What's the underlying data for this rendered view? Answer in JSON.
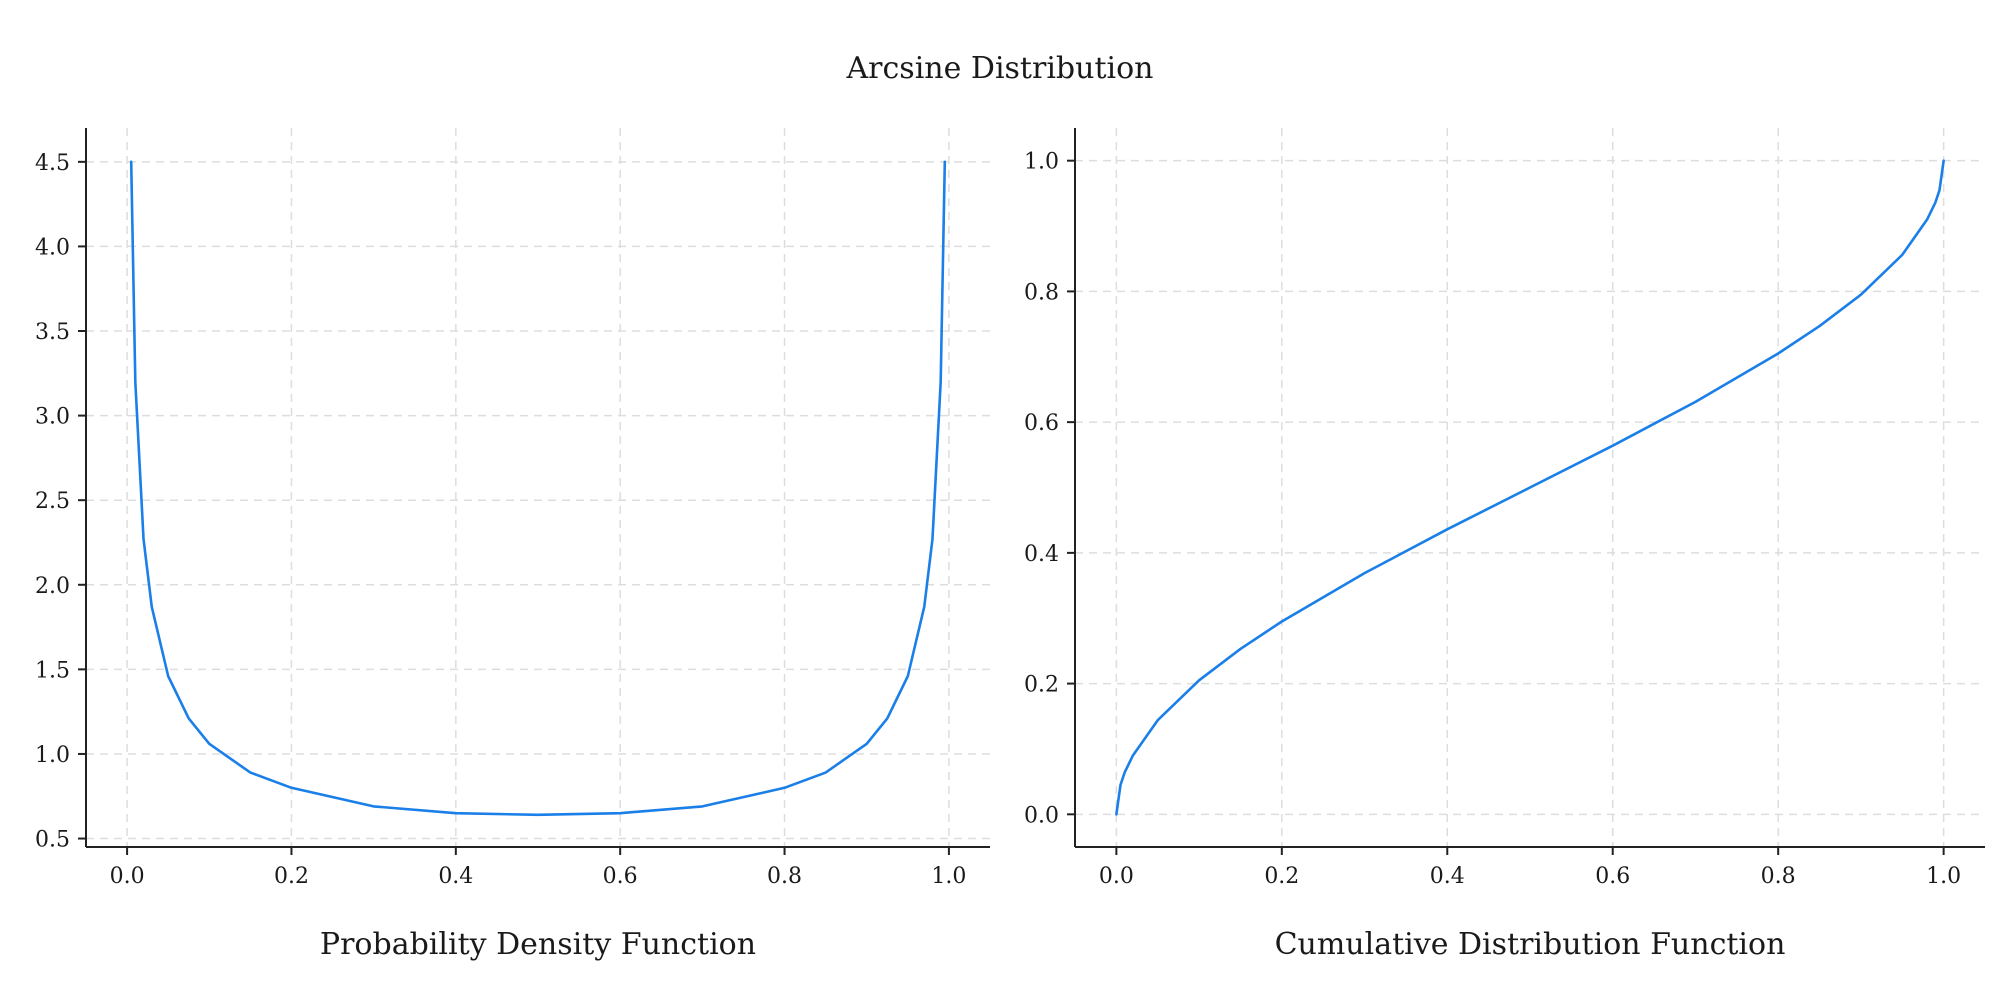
{
  "figure_title": "Arcsine Distribution",
  "line_color": "#1a7fe8",
  "chart_data": [
    {
      "type": "line",
      "xlabel": "Probability Density Function",
      "ylabel": "",
      "xlim": [
        -0.05,
        1.05
      ],
      "ylim": [
        0.45,
        4.7
      ],
      "xticks": [
        0.0,
        0.2,
        0.4,
        0.6,
        0.8,
        1.0
      ],
      "yticks": [
        0.5,
        1.0,
        1.5,
        2.0,
        2.5,
        3.0,
        3.5,
        4.0,
        4.5
      ],
      "xtick_labels": [
        "0.0",
        "0.2",
        "0.4",
        "0.6",
        "0.8",
        "1.0"
      ],
      "ytick_labels": [
        "0.5",
        "1.0",
        "1.5",
        "2.0",
        "2.5",
        "3.0",
        "3.5",
        "4.0",
        "4.5"
      ],
      "grid": true,
      "series": [
        {
          "x": [
            0.005,
            0.01,
            0.02,
            0.03,
            0.05,
            0.075,
            0.1,
            0.15,
            0.2,
            0.3,
            0.4,
            0.5,
            0.6,
            0.7,
            0.8,
            0.85,
            0.9,
            0.925,
            0.95,
            0.97,
            0.98,
            0.99,
            0.995
          ],
          "y": [
            4.5,
            3.2,
            2.27,
            1.87,
            1.46,
            1.21,
            1.06,
            0.89,
            0.8,
            0.69,
            0.65,
            0.64,
            0.65,
            0.69,
            0.8,
            0.89,
            1.06,
            1.21,
            1.46,
            1.87,
            2.27,
            3.2,
            4.5
          ]
        }
      ]
    },
    {
      "type": "line",
      "xlabel": "Cumulative Distribution Function",
      "ylabel": "",
      "xlim": [
        -0.05,
        1.05
      ],
      "ylim": [
        -0.05,
        1.05
      ],
      "xticks": [
        0.0,
        0.2,
        0.4,
        0.6,
        0.8,
        1.0
      ],
      "yticks": [
        0.0,
        0.2,
        0.4,
        0.6,
        0.8,
        1.0
      ],
      "xtick_labels": [
        "0.0",
        "0.2",
        "0.4",
        "0.6",
        "0.8",
        "1.0"
      ],
      "ytick_labels": [
        "0.0",
        "0.2",
        "0.4",
        "0.6",
        "0.8",
        "1.0"
      ],
      "grid": true,
      "series": [
        {
          "x": [
            0.0,
            0.005,
            0.01,
            0.02,
            0.05,
            0.1,
            0.15,
            0.2,
            0.3,
            0.4,
            0.5,
            0.6,
            0.7,
            0.8,
            0.85,
            0.9,
            0.95,
            0.98,
            0.99,
            0.995,
            1.0
          ],
          "y": [
            0.0,
            0.045,
            0.064,
            0.09,
            0.144,
            0.205,
            0.253,
            0.295,
            0.369,
            0.436,
            0.5,
            0.564,
            0.631,
            0.705,
            0.747,
            0.795,
            0.856,
            0.91,
            0.936,
            0.955,
            1.0
          ]
        }
      ]
    }
  ]
}
